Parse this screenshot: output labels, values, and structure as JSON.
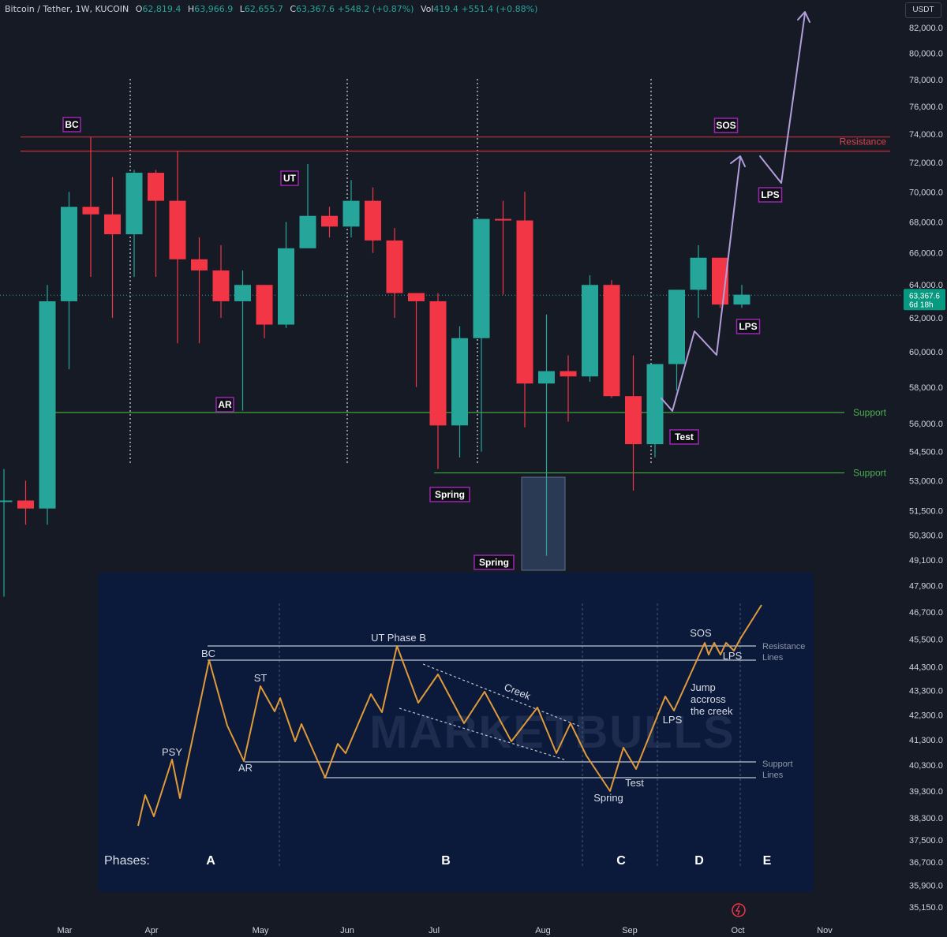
{
  "header": {
    "symbol": "Bitcoin / Tether, 1W, KUCOIN",
    "o_label": "O",
    "o": "62,819.4",
    "h_label": "H",
    "h": "63,966.9",
    "l_label": "L",
    "l": "62,655.7",
    "c_label": "C",
    "c": "63,367.6",
    "change": "+548.2 (+0.87%)",
    "vol_label": "Vol",
    "vol": "419.4",
    "vol_change": "+551.4 (+0.88%)"
  },
  "currency_button": "USDT",
  "colors": {
    "background": "#161a25",
    "up": "#26a69a",
    "down": "#f23645",
    "resistance": "#c2303a",
    "support": "#3fa83f",
    "projection": "#b39ddb",
    "label_border": "#9c27b0",
    "wyckoff_line": "#e09a3a"
  },
  "chart_data": [
    {
      "type": "candlestick",
      "title": "Bitcoin / Tether, 1W, KUCOIN",
      "y_scale": "log",
      "ylim": [
        34800,
        84500
      ],
      "y_ticks": [
        "82,000.0",
        "80,000.0",
        "78,000.0",
        "76,000.0",
        "74,000.0",
        "72,000.0",
        "70,000.0",
        "68,000.0",
        "66,000.0",
        "64,000.0",
        "62,000.0",
        "60,000.0",
        "58,000.0",
        "56,000.0",
        "54,500.0",
        "53,000.0",
        "51,500.0",
        "50,300.0",
        "49,100.0",
        "47,900.0",
        "46,700.0",
        "45,500.0",
        "44,300.0",
        "43,300.0",
        "42,300.0",
        "41,300.0",
        "40,300.0",
        "39,300.0",
        "38,300.0",
        "37,500.0",
        "36,700.0",
        "35,900.0",
        "35,150.0"
      ],
      "x_ticks": [
        "Mar",
        "Apr",
        "May",
        "Jun",
        "Jul",
        "Aug",
        "Sep",
        "Oct",
        "Nov"
      ],
      "current_price": "63,367.6",
      "countdown": "6d 18h",
      "candles": [
        {
          "o": 52000,
          "h": 53600,
          "l": 47400,
          "c": 52000
        },
        {
          "o": 52000,
          "h": 53000,
          "l": 50800,
          "c": 51600
        },
        {
          "o": 51600,
          "h": 64000,
          "l": 50800,
          "c": 63000
        },
        {
          "o": 63000,
          "h": 70000,
          "l": 59000,
          "c": 69000
        },
        {
          "o": 69000,
          "h": 73800,
          "l": 64500,
          "c": 68500
        },
        {
          "o": 68500,
          "h": 71000,
          "l": 62000,
          "c": 67200
        },
        {
          "o": 67200,
          "h": 71500,
          "l": 64500,
          "c": 71300
        },
        {
          "o": 71300,
          "h": 71500,
          "l": 64500,
          "c": 69400
        },
        {
          "o": 69400,
          "h": 72800,
          "l": 60500,
          "c": 65600
        },
        {
          "o": 65600,
          "h": 67000,
          "l": 60500,
          "c": 64900
        },
        {
          "o": 64900,
          "h": 66500,
          "l": 62000,
          "c": 63000
        },
        {
          "o": 63000,
          "h": 64900,
          "l": 56700,
          "c": 64000
        },
        {
          "o": 64000,
          "h": 64000,
          "l": 60800,
          "c": 61600
        },
        {
          "o": 61600,
          "h": 68000,
          "l": 61400,
          "c": 66300
        },
        {
          "o": 66300,
          "h": 71900,
          "l": 66300,
          "c": 68400
        },
        {
          "o": 68400,
          "h": 69000,
          "l": 67000,
          "c": 67700
        },
        {
          "o": 67700,
          "h": 70800,
          "l": 67000,
          "c": 69400
        },
        {
          "o": 69400,
          "h": 70300,
          "l": 66000,
          "c": 66800
        },
        {
          "o": 66800,
          "h": 67600,
          "l": 62000,
          "c": 63500
        },
        {
          "o": 63500,
          "h": 63500,
          "l": 58000,
          "c": 63000
        },
        {
          "o": 63000,
          "h": 63500,
          "l": 53600,
          "c": 55900
        },
        {
          "o": 55900,
          "h": 61500,
          "l": 54200,
          "c": 60800
        },
        {
          "o": 60800,
          "h": 68200,
          "l": 54500,
          "c": 68200
        },
        {
          "o": 68200,
          "h": 69400,
          "l": 63400,
          "c": 68100
        },
        {
          "o": 68100,
          "h": 70000,
          "l": 55800,
          "c": 58200
        },
        {
          "o": 58200,
          "h": 62200,
          "l": 49300,
          "c": 58900
        },
        {
          "o": 58900,
          "h": 59800,
          "l": 56100,
          "c": 58600
        },
        {
          "o": 58600,
          "h": 64600,
          "l": 58300,
          "c": 64000
        },
        {
          "o": 64000,
          "h": 64300,
          "l": 57400,
          "c": 57500
        },
        {
          "o": 57500,
          "h": 59800,
          "l": 52500,
          "c": 54900
        },
        {
          "o": 54900,
          "h": 59300,
          "l": 54200,
          "c": 59300
        },
        {
          "o": 59300,
          "h": 63700,
          "l": 57800,
          "c": 63700
        },
        {
          "o": 63700,
          "h": 66500,
          "l": 62000,
          "c": 65700
        },
        {
          "o": 65700,
          "h": 65700,
          "l": 62600,
          "c": 62800
        },
        {
          "o": 62800,
          "h": 64000,
          "l": 62600,
          "c": 63400
        }
      ],
      "resistance_lines": [
        73800,
        72800
      ],
      "resistance_label": "Resistance",
      "support_lines": [
        56600,
        53400
      ],
      "support_label": "Support",
      "labels": [
        "BC",
        "AR",
        "UT",
        "Spring",
        "Spring",
        "Test",
        "SOS",
        "LPS",
        "LPS"
      ]
    },
    {
      "type": "line",
      "inset": true,
      "watermark": "MARKETBULLS",
      "annotations": [
        "PSY",
        "BC",
        "ST",
        "AR",
        "UT Phase B",
        "Creek",
        "Spring",
        "Test",
        "LPS",
        "SOS",
        "LPS",
        "Jump accross the creek",
        "Resistance Lines",
        "Support Lines"
      ],
      "phases_label": "Phases:",
      "phases": [
        "A",
        "B",
        "C",
        "D",
        "E"
      ]
    }
  ]
}
